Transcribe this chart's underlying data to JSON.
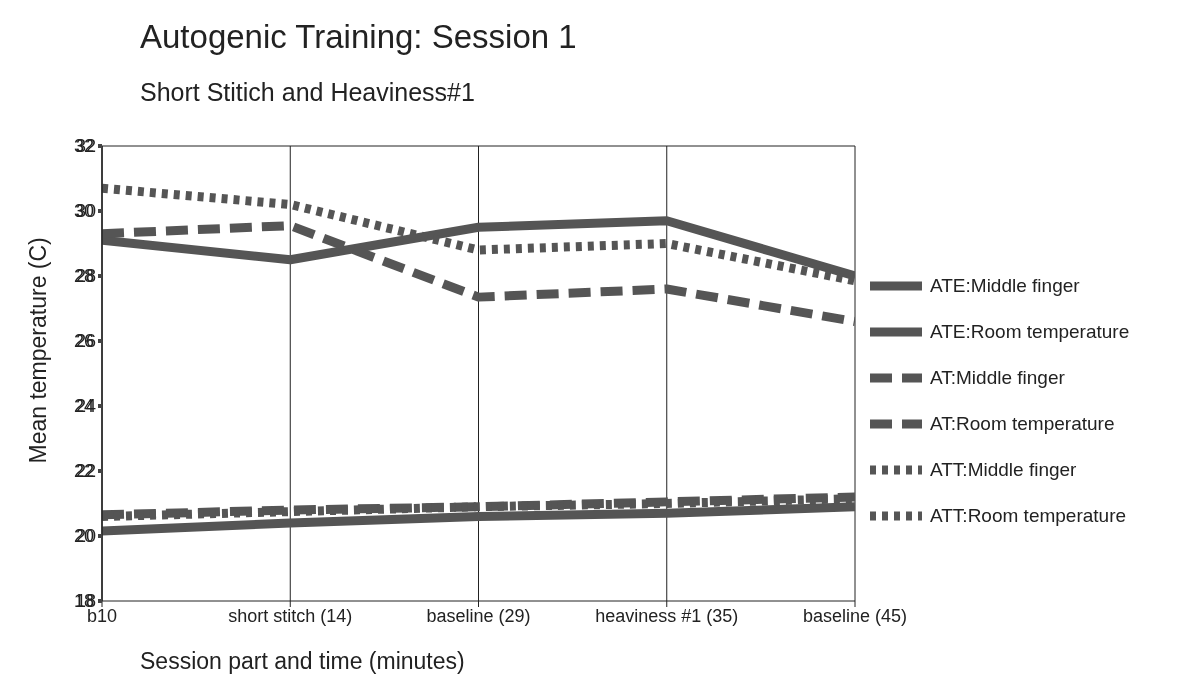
{
  "chart_data": {
    "type": "line",
    "title": "Autogenic Training: Session 1",
    "subtitle": "Short Stitich and Heaviness#1",
    "xlabel": "Session part and time (minutes)",
    "ylabel": "Mean temperature (C)",
    "categories": [
      "b10",
      "short stitch (14)",
      "baseline (29)",
      "heaviness #1 (35)",
      "baseline (45)"
    ],
    "ylim": [
      18,
      32
    ],
    "yticks": [
      18,
      20,
      22,
      24,
      26,
      28,
      30,
      32
    ],
    "grid": "x",
    "legend": "right",
    "marker": "none",
    "series": [
      {
        "name": "ATE:Middle finger",
        "color": "#555555",
        "line_style": "solid",
        "values": [
          29.1,
          28.5,
          29.5,
          29.7,
          28.0
        ]
      },
      {
        "name": "ATE:Room temperature",
        "color": "#555555",
        "line_style": "solid",
        "values": [
          20.15,
          20.4,
          20.6,
          20.7,
          20.9
        ]
      },
      {
        "name": "AT:Middle finger",
        "color": "#555555",
        "line_style": "dashed",
        "values": [
          29.3,
          29.55,
          27.35,
          27.6,
          26.6
        ]
      },
      {
        "name": "AT:Room temperature",
        "color": "#555555",
        "line_style": "dashed",
        "values": [
          20.65,
          20.8,
          20.9,
          21.05,
          21.2
        ]
      },
      {
        "name": "ATT:Middle finger",
        "color": "#555555",
        "line_style": "dotted",
        "values": [
          30.7,
          30.2,
          28.8,
          29.0,
          27.85
        ]
      },
      {
        "name": "ATT:Room temperature",
        "color": "#555555",
        "line_style": "dotted",
        "values": [
          20.6,
          20.75,
          20.9,
          21.0,
          21.15
        ]
      }
    ]
  }
}
